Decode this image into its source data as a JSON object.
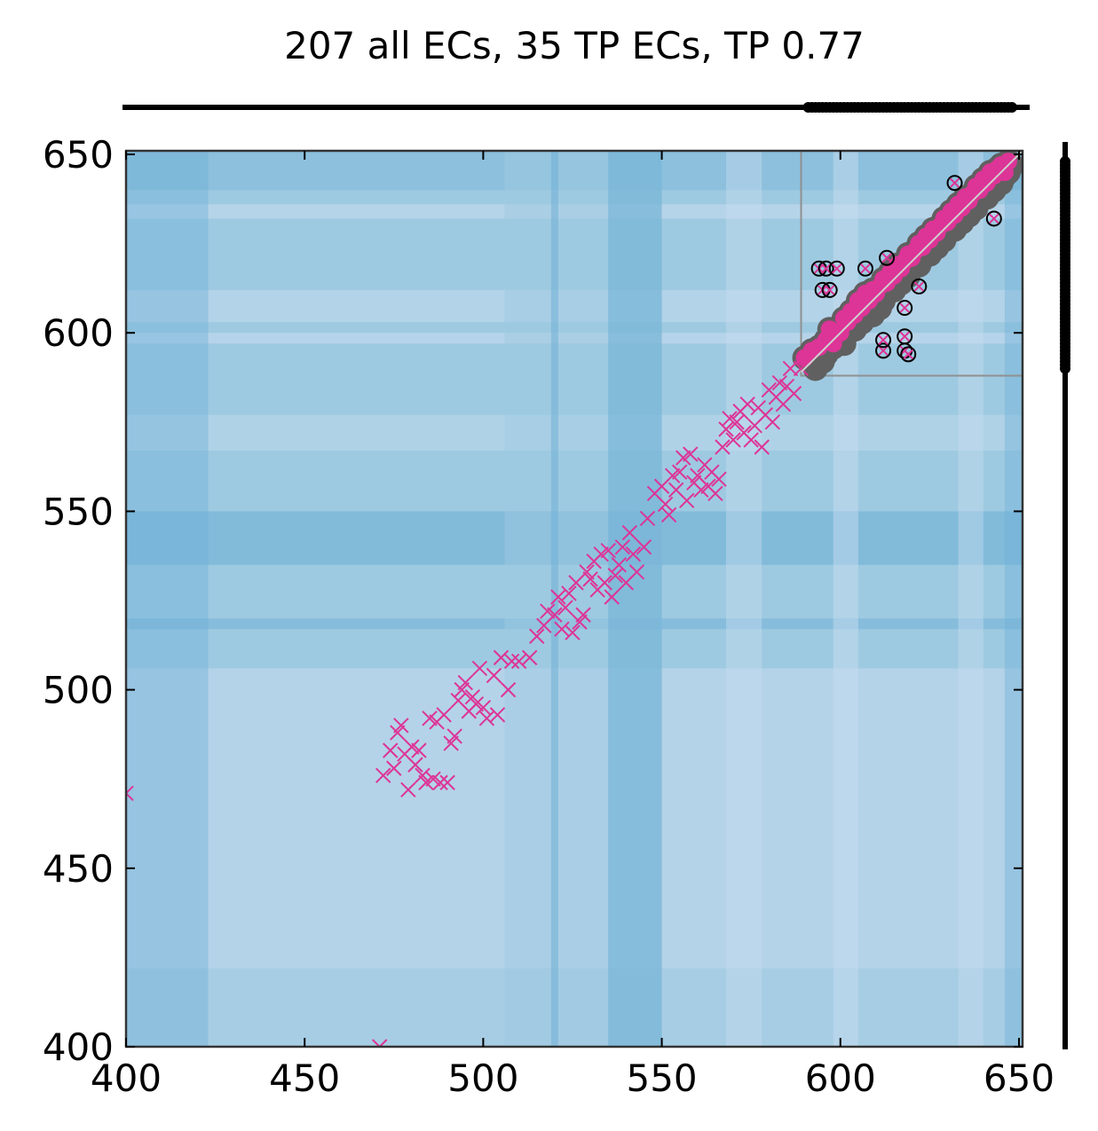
{
  "chart_data": {
    "type": "scatter",
    "title": "207 all ECs, 35 TP ECs, TP 0.77",
    "xlabel": "",
    "ylabel": "",
    "xlim": [
      400,
      651
    ],
    "ylim": [
      400,
      651
    ],
    "x_ticks": [
      400,
      450,
      500,
      550,
      600,
      650
    ],
    "y_ticks": [
      400,
      450,
      500,
      550,
      600,
      650
    ],
    "x_tick_labels": [
      "400",
      "450",
      "500",
      "550",
      "600",
      "650"
    ],
    "y_tick_labels": [
      "400",
      "450",
      "500",
      "550",
      "600",
      "650"
    ],
    "grid": false,
    "colors": {
      "background_light": "#c6dbef",
      "background_mid": "#9ecae1",
      "background_dark": "#6baed6",
      "predicted_marker": "#dd3497",
      "true_contact": "#606060",
      "outline": "#000000"
    },
    "zoom_box": {
      "x_range": [
        589,
        651
      ],
      "y_range": [
        588,
        651
      ]
    },
    "top_track": {
      "range": [
        400,
        651
      ],
      "highlight_range": [
        591,
        648
      ]
    },
    "right_track": {
      "range": [
        400,
        651
      ],
      "highlight_range": [
        590,
        648
      ]
    },
    "series": [
      {
        "marker": "x",
        "points": [
          [
            400,
            471
          ],
          [
            471,
            400
          ],
          [
            472,
            476
          ],
          [
            474,
            483
          ],
          [
            475,
            478
          ],
          [
            476,
            488
          ],
          [
            477,
            490
          ],
          [
            478,
            482
          ],
          [
            479,
            472
          ],
          [
            480,
            484
          ],
          [
            481,
            479
          ],
          [
            482,
            483
          ],
          [
            483,
            476
          ],
          [
            484,
            474
          ],
          [
            485,
            492
          ],
          [
            486,
            475
          ],
          [
            487,
            491
          ],
          [
            488,
            474
          ],
          [
            489,
            493
          ],
          [
            490,
            474
          ],
          [
            491,
            485
          ],
          [
            492,
            487
          ],
          [
            493,
            497
          ],
          [
            494,
            500
          ],
          [
            495,
            502
          ],
          [
            496,
            494
          ],
          [
            497,
            498
          ],
          [
            498,
            496
          ],
          [
            499,
            506
          ],
          [
            500,
            495
          ],
          [
            501,
            492
          ],
          [
            503,
            504
          ],
          [
            504,
            493
          ],
          [
            505,
            509
          ],
          [
            507,
            500
          ],
          [
            508,
            508
          ],
          [
            510,
            508
          ],
          [
            513,
            509
          ],
          [
            515,
            515
          ],
          [
            517,
            518
          ],
          [
            518,
            522
          ],
          [
            520,
            521
          ],
          [
            521,
            526
          ],
          [
            522,
            517
          ],
          [
            523,
            523
          ],
          [
            524,
            527
          ],
          [
            525,
            516
          ],
          [
            526,
            530
          ],
          [
            527,
            519
          ],
          [
            528,
            521
          ],
          [
            529,
            533
          ],
          [
            530,
            531
          ],
          [
            531,
            536
          ],
          [
            532,
            528
          ],
          [
            533,
            538
          ],
          [
            534,
            530
          ],
          [
            535,
            539
          ],
          [
            536,
            526
          ],
          [
            537,
            532
          ],
          [
            538,
            535
          ],
          [
            539,
            540
          ],
          [
            540,
            530
          ],
          [
            541,
            544
          ],
          [
            542,
            538
          ],
          [
            543,
            533
          ],
          [
            545,
            540
          ],
          [
            546,
            548
          ],
          [
            548,
            555
          ],
          [
            550,
            557
          ],
          [
            551,
            552
          ],
          [
            552,
            549
          ],
          [
            553,
            560
          ],
          [
            554,
            556
          ],
          [
            555,
            561
          ],
          [
            556,
            565
          ],
          [
            557,
            553
          ],
          [
            558,
            566
          ],
          [
            559,
            558
          ],
          [
            560,
            560
          ],
          [
            561,
            556
          ],
          [
            562,
            563
          ],
          [
            563,
            557
          ],
          [
            564,
            561
          ],
          [
            565,
            555
          ],
          [
            566,
            559
          ],
          [
            567,
            568
          ],
          [
            568,
            573
          ],
          [
            569,
            576
          ],
          [
            570,
            570
          ],
          [
            571,
            575
          ],
          [
            572,
            578
          ],
          [
            573,
            572
          ],
          [
            574,
            580
          ],
          [
            575,
            570
          ],
          [
            576,
            574
          ],
          [
            577,
            579
          ],
          [
            578,
            568
          ],
          [
            579,
            577
          ],
          [
            580,
            584
          ],
          [
            581,
            575
          ],
          [
            582,
            582
          ],
          [
            583,
            586
          ],
          [
            584,
            580
          ],
          [
            585,
            585
          ],
          [
            586,
            590
          ],
          [
            587,
            583
          ],
          [
            589,
            590
          ]
        ]
      },
      {
        "marker": "o",
        "points": [
          [
            590,
            593
          ],
          [
            592,
            595
          ],
          [
            594,
            596
          ],
          [
            596,
            598
          ],
          [
            597,
            601
          ],
          [
            598,
            597
          ],
          [
            600,
            600
          ],
          [
            601,
            604
          ],
          [
            602,
            603
          ],
          [
            603,
            606
          ],
          [
            604,
            605
          ],
          [
            605,
            609
          ],
          [
            606,
            607
          ],
          [
            607,
            611
          ],
          [
            608,
            609
          ],
          [
            609,
            612
          ],
          [
            610,
            611
          ],
          [
            611,
            613
          ],
          [
            612,
            615
          ],
          [
            613,
            614
          ],
          [
            614,
            617
          ],
          [
            615,
            616
          ],
          [
            616,
            619
          ],
          [
            617,
            618
          ],
          [
            618,
            620
          ],
          [
            619,
            622
          ],
          [
            620,
            621
          ],
          [
            621,
            623
          ],
          [
            622,
            625
          ],
          [
            623,
            624
          ],
          [
            624,
            627
          ],
          [
            625,
            626
          ],
          [
            626,
            629
          ],
          [
            627,
            628
          ],
          [
            628,
            630
          ],
          [
            629,
            632
          ],
          [
            630,
            631
          ],
          [
            631,
            634
          ],
          [
            632,
            633
          ],
          [
            633,
            636
          ],
          [
            634,
            635
          ],
          [
            635,
            638
          ],
          [
            636,
            637
          ],
          [
            637,
            639
          ],
          [
            638,
            641
          ],
          [
            639,
            640
          ],
          [
            640,
            643
          ],
          [
            641,
            642
          ],
          [
            642,
            645
          ],
          [
            643,
            644
          ],
          [
            644,
            646
          ],
          [
            645,
            647
          ],
          [
            646,
            645
          ],
          [
            647,
            648
          ]
        ]
      },
      {
        "marker": "x-circle",
        "points": [
          [
            594,
            618
          ],
          [
            595,
            612
          ],
          [
            596,
            618
          ],
          [
            597,
            612
          ],
          [
            599,
            618
          ],
          [
            607,
            618
          ],
          [
            612,
            595
          ],
          [
            612,
            598
          ],
          [
            613,
            621
          ],
          [
            618,
            595
          ],
          [
            618,
            599
          ],
          [
            618,
            607
          ],
          [
            619,
            594
          ],
          [
            622,
            613
          ],
          [
            632,
            642
          ],
          [
            643,
            632
          ]
        ]
      }
    ]
  }
}
